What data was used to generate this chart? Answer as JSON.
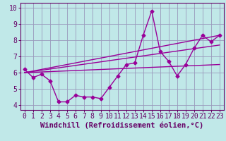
{
  "xlabel": "Windchill (Refroidissement éolien,°C)",
  "background_color": "#c0e8e8",
  "grid_color": "#9999bb",
  "line_color": "#990099",
  "axis_color": "#660066",
  "xlim": [
    -0.5,
    23.5
  ],
  "ylim": [
    3.7,
    10.3
  ],
  "xticks": [
    0,
    1,
    2,
    3,
    4,
    5,
    6,
    7,
    8,
    9,
    10,
    11,
    12,
    13,
    14,
    15,
    16,
    17,
    18,
    19,
    20,
    21,
    22,
    23
  ],
  "yticks": [
    4,
    5,
    6,
    7,
    8,
    9,
    10
  ],
  "series1_x": [
    0,
    1,
    2,
    3,
    4,
    5,
    6,
    7,
    8,
    9,
    10,
    11,
    12,
    13,
    14,
    15,
    16,
    17,
    18,
    19,
    20,
    21,
    22,
    23
  ],
  "series1_y": [
    6.2,
    5.7,
    5.9,
    5.5,
    4.2,
    4.2,
    4.6,
    4.5,
    4.5,
    4.4,
    5.1,
    5.8,
    6.5,
    6.6,
    8.3,
    9.8,
    7.3,
    6.7,
    5.8,
    6.5,
    7.5,
    8.3,
    7.9,
    8.3
  ],
  "trend1_x": [
    0,
    23
  ],
  "trend1_y": [
    6.0,
    8.3
  ],
  "trend2_x": [
    0,
    23
  ],
  "trend2_y": [
    6.0,
    7.7
  ],
  "trend3_x": [
    0,
    23
  ],
  "trend3_y": [
    6.0,
    6.5
  ],
  "marker": "D",
  "markersize": 2.5,
  "linewidth": 1.0,
  "xlabel_fontsize": 7.5,
  "tick_fontsize": 7
}
